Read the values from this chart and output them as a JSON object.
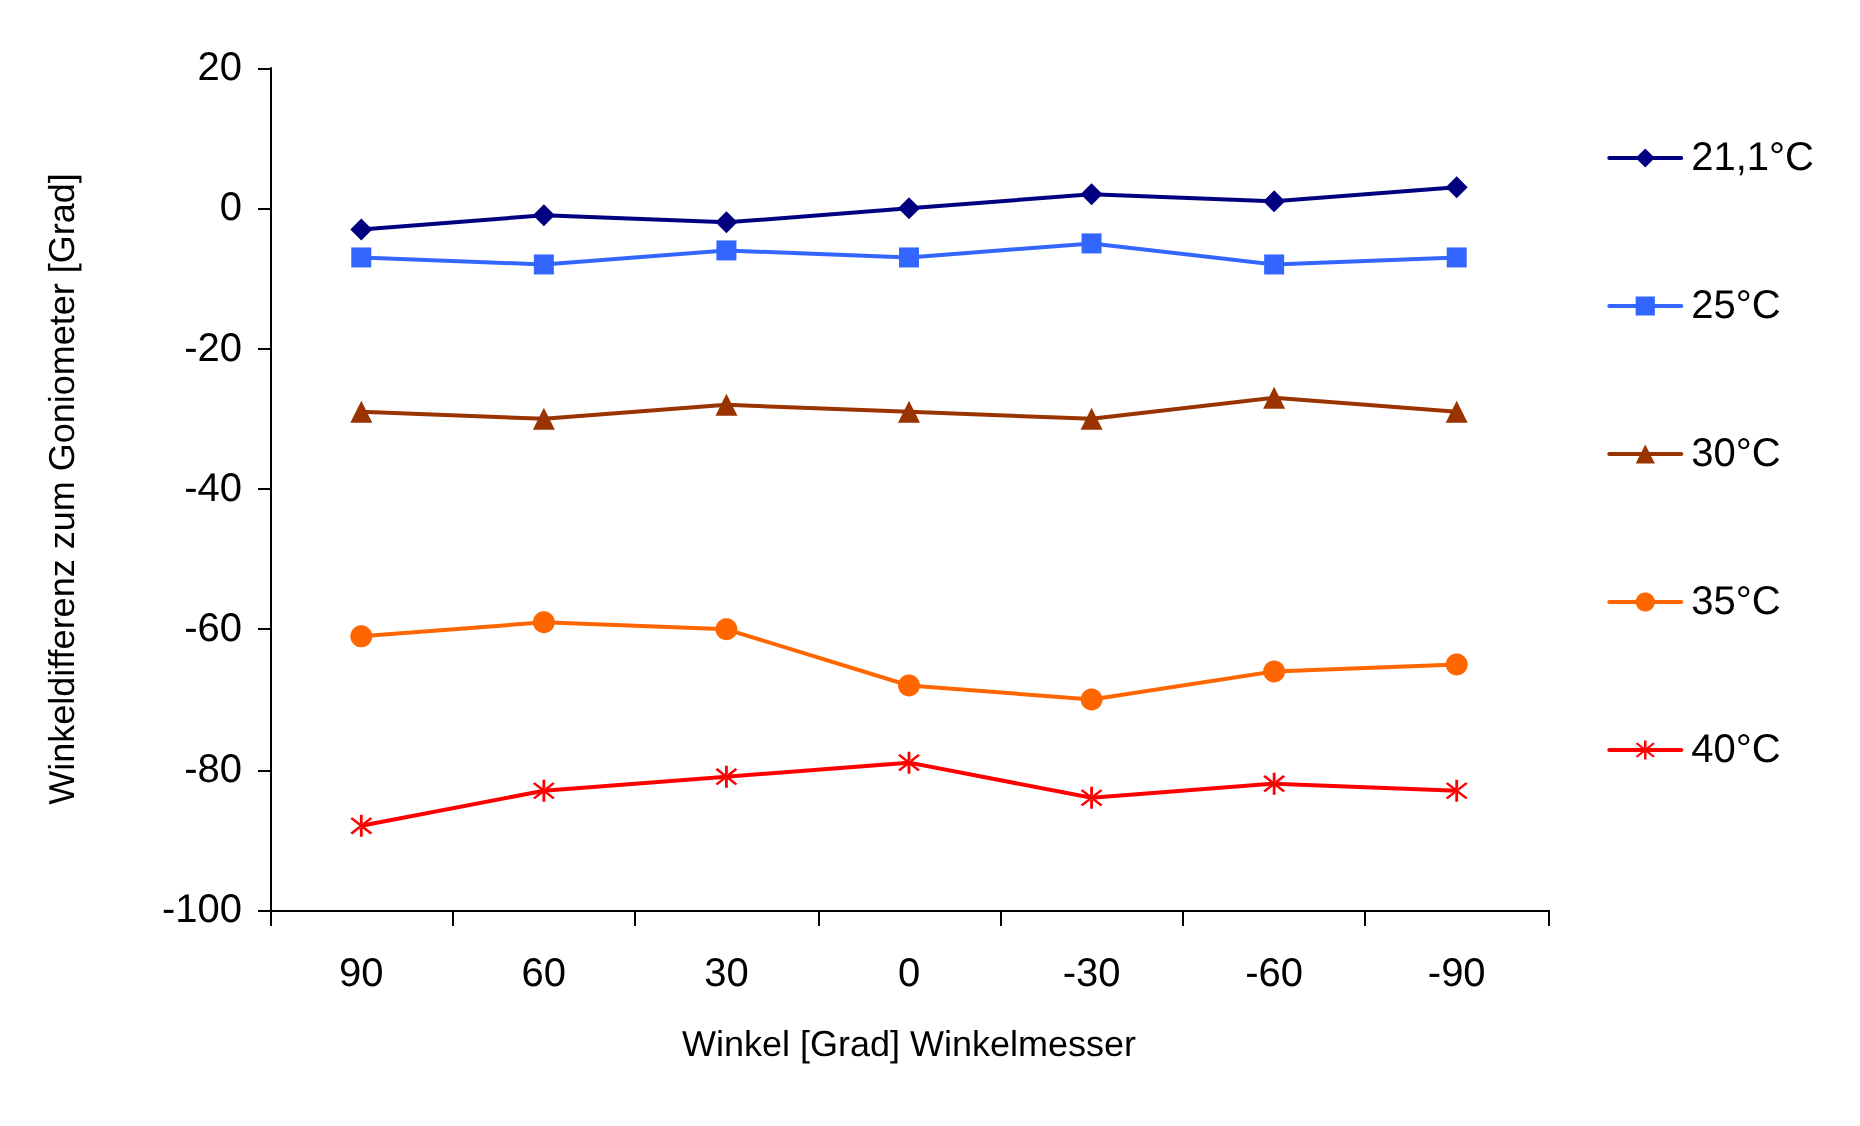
{
  "chart_data": {
    "type": "line",
    "xlabel": "Winkel [Grad] Winkelmesser",
    "ylabel": "Winkeldifferenz zum Goniometer [Grad]",
    "categories": [
      "90",
      "60",
      "30",
      "0",
      "-30",
      "-60",
      "-90"
    ],
    "series": [
      {
        "name": "21,1°C",
        "color": "#000080",
        "marker": "diamond",
        "values": [
          -3,
          -1,
          -2,
          0,
          2,
          1,
          3
        ]
      },
      {
        "name": "25°C",
        "color": "#3366ff",
        "marker": "square",
        "values": [
          -7,
          -8,
          -6,
          -7,
          -5,
          -8,
          -7
        ]
      },
      {
        "name": "30°C",
        "color": "#993300",
        "marker": "triangle",
        "values": [
          -29,
          -30,
          -28,
          -29,
          -30,
          -27,
          -29
        ]
      },
      {
        "name": "35°C",
        "color": "#ff6600",
        "marker": "circle",
        "values": [
          -61,
          -59,
          -60,
          -68,
          -70,
          -66,
          -65
        ]
      },
      {
        "name": "40°C",
        "color": "#ff0000",
        "marker": "cross",
        "values": [
          -88,
          -83,
          -81,
          -79,
          -84,
          -82,
          -83
        ]
      }
    ],
    "ylim": [
      -100,
      20
    ],
    "yticks": [
      -100,
      -80,
      -60,
      -40,
      -20,
      0,
      20
    ],
    "grid": false,
    "legend": "right",
    "line_style": "solid"
  }
}
